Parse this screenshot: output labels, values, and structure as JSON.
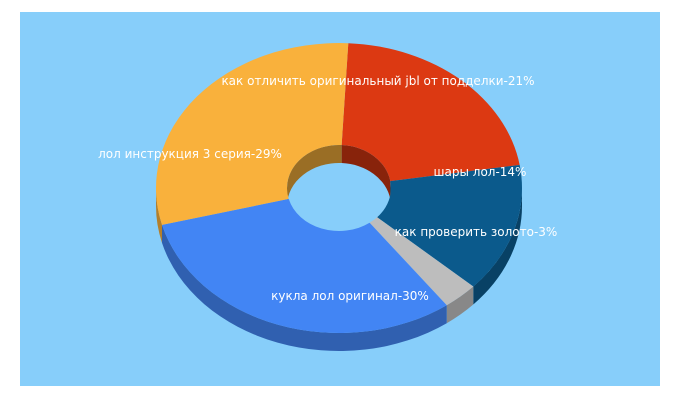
{
  "chart_data": {
    "type": "pie",
    "style": "3d-donut",
    "background": "#87cefa",
    "slices": [
      {
        "label": "как отличить оригинальный jbl от подделки-21%",
        "value": 21,
        "color": "#dc3912"
      },
      {
        "label": "шары лол-14%",
        "value": 14,
        "color": "#0b5a8c"
      },
      {
        "label": "как проверить золото-3%",
        "value": 3,
        "color": "#bdbdbd"
      },
      {
        "label": "кукла лол оригинал-30%",
        "value": 30,
        "color": "#4285f4"
      },
      {
        "label": "лол инструкция 3 серия-29%",
        "value": 29,
        "color": "#f9b13c"
      }
    ]
  }
}
